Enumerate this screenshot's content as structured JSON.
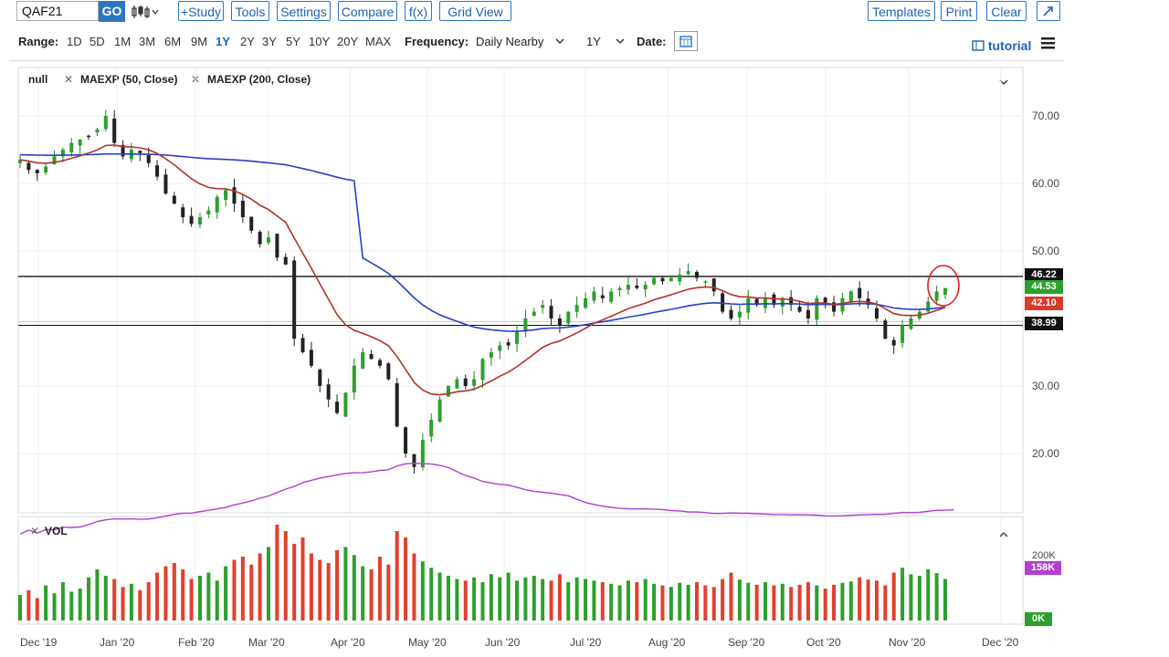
{
  "toolbar": {
    "symbol": "QAF21",
    "go": "GO",
    "study": "+Study",
    "tools": "Tools",
    "settings": "Settings",
    "compare": "Compare",
    "fx": "f(x)",
    "grid_view": "Grid View",
    "templates": "Templates",
    "print": "Print",
    "clear": "Clear"
  },
  "range_bar": {
    "range_label": "Range:",
    "ranges": [
      "1D",
      "5D",
      "1M",
      "3M",
      "6M",
      "9M",
      "1Y",
      "2Y",
      "3Y",
      "5Y",
      "10Y",
      "20Y",
      "MAX"
    ],
    "active_range": "1Y",
    "frequency_label": "Frequency:",
    "frequency_value": "Daily Nearby",
    "period_value": "1Y",
    "date_label": "Date:",
    "tutorial": "tutorial"
  },
  "legend": {
    "null_label": "null",
    "study1": "MAEXP (50, Close)",
    "study2": "MAEXP (200, Close)",
    "vol": "VOL"
  },
  "price_badges": {
    "b1": "46.22",
    "b2": "44.53",
    "b3": "42.10",
    "b4": "38.99",
    "vol_high": "158K",
    "vol_low": "0K"
  },
  "colors": {
    "up": "#2ca02c",
    "down": "#e0412e",
    "ma50": "#b2322e",
    "ma200": "#2440c9",
    "vol_ma": "#b040d0",
    "accent": "#2d75c2"
  },
  "chart_data": {
    "type": "candlestick",
    "y_ticks": [
      "70.00",
      "60.00",
      "50.00",
      "30.00",
      "20.00"
    ],
    "vol_ticks": [
      "200K"
    ],
    "x_labels": [
      "Dec '19",
      "Jan '20",
      "Feb '20",
      "Mar '20",
      "Apr '20",
      "May '20",
      "Jun '20",
      "Jul '20",
      "Aug '20",
      "Sep '20",
      "Oct '20",
      "Nov '20",
      "Dec '20"
    ],
    "ylim": [
      14,
      78
    ],
    "horizontal_lines": [
      46.22,
      38.99
    ],
    "closes": [
      63.5,
      62,
      61.5,
      62.5,
      64,
      65,
      66,
      66.5,
      67,
      68,
      70,
      66,
      64,
      65,
      64.5,
      63,
      61,
      58.5,
      57,
      55,
      54,
      55,
      56,
      58,
      59,
      57,
      55,
      53,
      51,
      52,
      49,
      48,
      37,
      35,
      33,
      30,
      28,
      26,
      29,
      33,
      35,
      34,
      33,
      31,
      24,
      20,
      18,
      22,
      25,
      28,
      30,
      31,
      30,
      31,
      34,
      35,
      36,
      36,
      38,
      40,
      41,
      42,
      40,
      39,
      41,
      42,
      43,
      44,
      43,
      44,
      44.5,
      45,
      44.5,
      45,
      46,
      45.5,
      46,
      46.5,
      47,
      46,
      45.5,
      44,
      41,
      40,
      41,
      43,
      42,
      43,
      42,
      43,
      42,
      41,
      40,
      43,
      42,
      41,
      43,
      44,
      43,
      42,
      40,
      37,
      36,
      39,
      40,
      41,
      42.5,
      44,
      44.5
    ],
    "volumes": [
      80,
      95,
      70,
      110,
      85,
      120,
      90,
      100,
      135,
      160,
      140,
      130,
      105,
      115,
      95,
      120,
      150,
      170,
      180,
      160,
      130,
      140,
      150,
      125,
      170,
      190,
      200,
      175,
      210,
      230,
      300,
      280,
      240,
      260,
      210,
      190,
      180,
      220,
      230,
      205,
      170,
      160,
      200,
      175,
      280,
      260,
      210,
      185,
      165,
      150,
      140,
      130,
      125,
      135,
      120,
      145,
      135,
      150,
      125,
      135,
      140,
      130,
      125,
      145,
      120,
      135,
      130,
      125,
      120,
      115,
      110,
      125,
      120,
      130,
      115,
      110,
      105,
      118,
      112,
      120,
      110,
      105,
      130,
      150,
      128,
      118,
      112,
      120,
      110,
      115,
      105,
      112,
      120,
      110,
      100,
      112,
      118,
      122,
      135,
      128,
      125,
      110,
      150,
      165,
      145,
      140,
      160,
      148,
      130,
      125
    ]
  }
}
